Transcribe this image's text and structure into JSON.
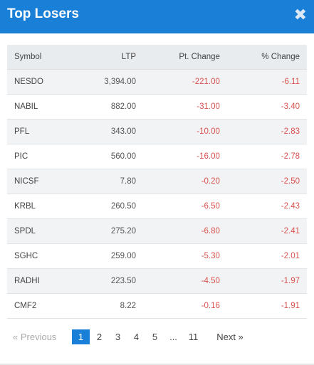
{
  "header": {
    "title": "Top Losers",
    "close_glyph": "✖"
  },
  "table": {
    "columns": [
      "Symbol",
      "LTP",
      "Pt. Change",
      "% Change"
    ],
    "rows": [
      {
        "symbol": "NESDO",
        "ltp": "3,394.00",
        "pt_change": "-221.00",
        "pct_change": "-6.11"
      },
      {
        "symbol": "NABIL",
        "ltp": "882.00",
        "pt_change": "-31.00",
        "pct_change": "-3.40"
      },
      {
        "symbol": "PFL",
        "ltp": "343.00",
        "pt_change": "-10.00",
        "pct_change": "-2.83"
      },
      {
        "symbol": "PIC",
        "ltp": "560.00",
        "pt_change": "-16.00",
        "pct_change": "-2.78"
      },
      {
        "symbol": "NICSF",
        "ltp": "7.80",
        "pt_change": "-0.20",
        "pct_change": "-2.50"
      },
      {
        "symbol": "KRBL",
        "ltp": "260.50",
        "pt_change": "-6.50",
        "pct_change": "-2.43"
      },
      {
        "symbol": "SPDL",
        "ltp": "275.20",
        "pt_change": "-6.80",
        "pct_change": "-2.41"
      },
      {
        "symbol": "SGHC",
        "ltp": "259.00",
        "pt_change": "-5.30",
        "pct_change": "-2.01"
      },
      {
        "symbol": "RADHI",
        "ltp": "223.50",
        "pt_change": "-4.50",
        "pct_change": "-1.97"
      },
      {
        "symbol": "CMF2",
        "ltp": "8.22",
        "pt_change": "-0.16",
        "pct_change": "-1.91"
      }
    ]
  },
  "pagination": {
    "prev_label": "«  Previous",
    "pages": [
      "1",
      "2",
      "3",
      "4",
      "5"
    ],
    "ellipsis": "...",
    "last_page": "11",
    "next_label": "Next  »",
    "active_page": "1"
  },
  "colors": {
    "header_bg": "#1a7fd6",
    "negative": "#d9534f"
  }
}
